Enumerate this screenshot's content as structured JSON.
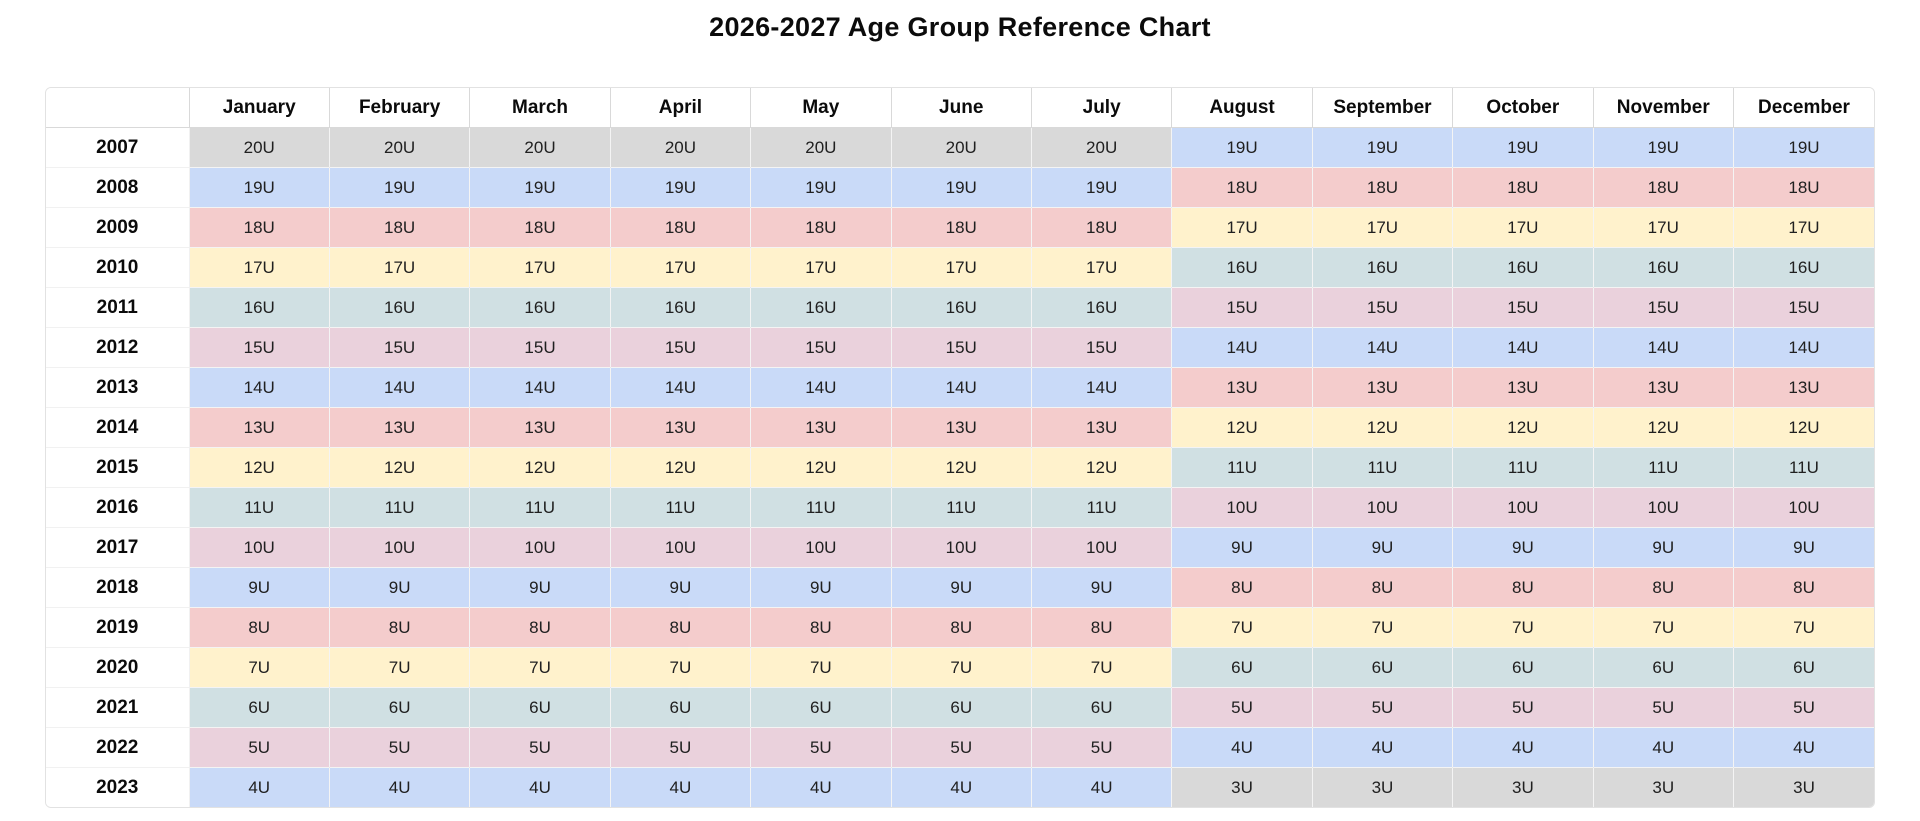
{
  "chart_data": {
    "type": "table",
    "title": "2026-2027 Age Group Reference Chart",
    "month_headers": [
      "January",
      "February",
      "March",
      "April",
      "May",
      "June",
      "July",
      "August",
      "September",
      "October",
      "November",
      "December"
    ],
    "jan_jul_month_count": 7,
    "rows": [
      {
        "year": "2007",
        "jan_jul": "20U",
        "aug_dec": "19U"
      },
      {
        "year": "2008",
        "jan_jul": "19U",
        "aug_dec": "18U"
      },
      {
        "year": "2009",
        "jan_jul": "18U",
        "aug_dec": "17U"
      },
      {
        "year": "2010",
        "jan_jul": "17U",
        "aug_dec": "16U"
      },
      {
        "year": "2011",
        "jan_jul": "16U",
        "aug_dec": "15U"
      },
      {
        "year": "2012",
        "jan_jul": "15U",
        "aug_dec": "14U"
      },
      {
        "year": "2013",
        "jan_jul": "14U",
        "aug_dec": "13U"
      },
      {
        "year": "2014",
        "jan_jul": "13U",
        "aug_dec": "12U"
      },
      {
        "year": "2015",
        "jan_jul": "12U",
        "aug_dec": "11U"
      },
      {
        "year": "2016",
        "jan_jul": "11U",
        "aug_dec": "10U"
      },
      {
        "year": "2017",
        "jan_jul": "10U",
        "aug_dec": "9U"
      },
      {
        "year": "2018",
        "jan_jul": "9U",
        "aug_dec": "8U"
      },
      {
        "year": "2019",
        "jan_jul": "8U",
        "aug_dec": "7U"
      },
      {
        "year": "2020",
        "jan_jul": "7U",
        "aug_dec": "6U"
      },
      {
        "year": "2021",
        "jan_jul": "6U",
        "aug_dec": "5U"
      },
      {
        "year": "2022",
        "jan_jul": "5U",
        "aug_dec": "4U"
      },
      {
        "year": "2023",
        "jan_jul": "4U",
        "aug_dec": "3U"
      }
    ],
    "age_group_colors": {
      "20U": "#d9d9d9",
      "19U": "#c9daf8",
      "18U": "#f4cccc",
      "17U": "#fff2cc",
      "16U": "#d0e0e3",
      "15U": "#ead1dc",
      "14U": "#c9daf8",
      "13U": "#f4cccc",
      "12U": "#fff2cc",
      "11U": "#d0e0e3",
      "10U": "#ead1dc",
      "9U": "#c9daf8",
      "8U": "#f4cccc",
      "7U": "#fff2cc",
      "6U": "#d0e0e3",
      "5U": "#ead1dc",
      "4U": "#c9daf8",
      "3U": "#d9d9d9"
    }
  }
}
